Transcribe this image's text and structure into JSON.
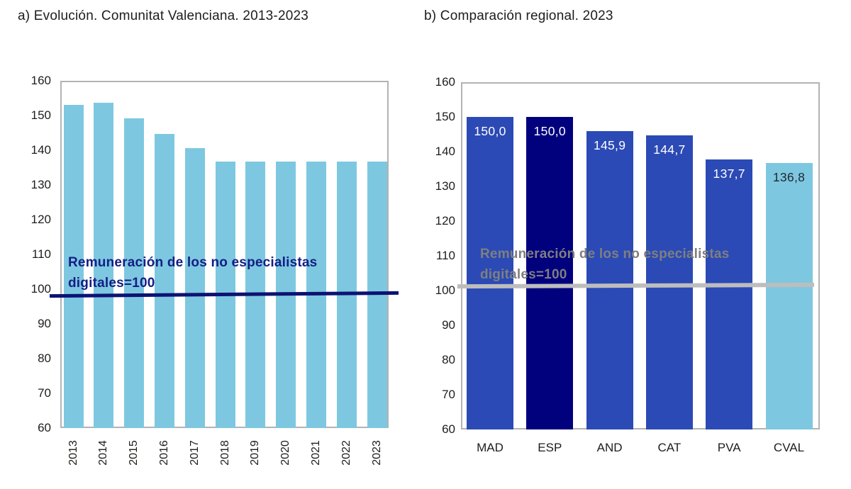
{
  "page_background": "#ffffff",
  "text_color": "#1d1d1b",
  "chart_data": [
    {
      "type": "bar",
      "title": "a) Evolución. Comunitat Valenciana. 2013-2023",
      "categories": [
        "2013",
        "2014",
        "2015",
        "2016",
        "2017",
        "2018",
        "2019",
        "2020",
        "2021",
        "2022",
        "2023"
      ],
      "values": [
        153.1,
        153.7,
        149.2,
        144.6,
        140.6,
        136.8,
        136.8,
        136.8,
        136.8,
        136.8,
        136.8
      ],
      "xlabel": "",
      "ylabel": "",
      "ylim": [
        60,
        160
      ],
      "ytick_step": 10,
      "grid": false,
      "legend": "none",
      "bar_colors": [
        "#7dc8e0",
        "#7dc8e0",
        "#7dc8e0",
        "#7dc8e0",
        "#7dc8e0",
        "#7dc8e0",
        "#7dc8e0",
        "#7dc8e0",
        "#7dc8e0",
        "#7dc8e0",
        "#7dc8e0"
      ],
      "data_labels": [],
      "annotation": {
        "text": "Remuneración de los no especialistas digitales=100",
        "color": "#141e85"
      },
      "reference_line": {
        "value": 100,
        "color": "#0d1273"
      }
    },
    {
      "type": "bar",
      "title": "b) Comparación regional. 2023",
      "categories": [
        "MAD",
        "ESP",
        "AND",
        "CAT",
        "PVA",
        "CVAL"
      ],
      "values": [
        150.0,
        150.0,
        145.9,
        144.7,
        137.7,
        136.8
      ],
      "xlabel": "",
      "ylabel": "",
      "ylim": [
        60,
        160
      ],
      "ytick_step": 10,
      "grid": false,
      "legend": "none",
      "bar_colors": [
        "#2b4ab5",
        "#01017e",
        "#2b4ab5",
        "#2b4ab5",
        "#2b4ab5",
        "#7dc8e0"
      ],
      "data_labels": [
        "150,0",
        "150,0",
        "145,9",
        "144,7",
        "137,7",
        "136,8"
      ],
      "data_label_colors": [
        "#ffffff",
        "#ffffff",
        "#ffffff",
        "#ffffff",
        "#ffffff",
        "#222733"
      ],
      "annotation": {
        "text": "Remuneración de los no especialistas digitales=100",
        "color": "#7f7f7f"
      },
      "reference_line": {
        "value": 100,
        "color": "#bdbdbe"
      }
    }
  ]
}
